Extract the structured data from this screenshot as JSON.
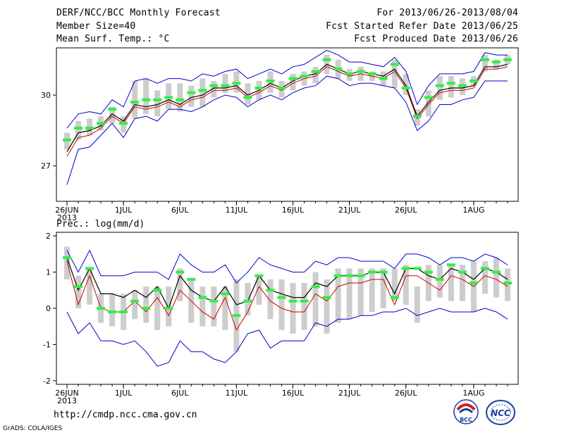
{
  "header": {
    "title": "DERF/NCC/BCC Monthly Forecast",
    "member_size": "Member Size=40",
    "variable1": "Mean Surf. Temp.: °C",
    "forecast_period": "For 2013/06/26-2013/08/04",
    "started_refer": "Fcst Started Refer Date 2013/06/25",
    "produced": "Fcst Produced Date 2013/06/26"
  },
  "footer": {
    "url": "http://cmdp.ncc.cma.gov.cn",
    "grads": "GrADS: COLA/IGES",
    "logo1_text": "BCC",
    "logo2_text": "NCC"
  },
  "colors": {
    "box": "#cdcdcd",
    "median": "#33ee44",
    "mean": "#000000",
    "obs": "#cc0000",
    "envelope": "#0000cc"
  },
  "chart_data": [
    {
      "type": "line",
      "title": "Mean Surf. Temp.: °C",
      "xlabel": "",
      "ylabel": "",
      "ylim": [
        25.5,
        32
      ],
      "y_ticks": [
        27,
        30
      ],
      "x_tick_labels": [
        "26JUN",
        "1JUL",
        "6JUL",
        "11JUL",
        "16JUL",
        "21JUL",
        "26JUL",
        "1AUG"
      ],
      "x_tick_days": [
        1,
        6,
        11,
        16,
        21,
        26,
        31,
        37
      ],
      "year_label": "2013",
      "days": [
        1,
        2,
        3,
        4,
        5,
        6,
        7,
        8,
        9,
        10,
        11,
        12,
        13,
        14,
        15,
        16,
        17,
        18,
        19,
        20,
        21,
        22,
        23,
        24,
        25,
        26,
        27,
        28,
        29,
        30,
        31,
        32,
        33,
        34,
        35,
        36,
        37,
        38,
        39,
        40
      ],
      "series": [
        {
          "name": "ensemble_box_top",
          "values": [
            28.4,
            28.9,
            29.0,
            29.1,
            29.5,
            29.1,
            30.6,
            30.7,
            30.2,
            30.5,
            30.5,
            30.4,
            30.7,
            30.6,
            30.9,
            31.0,
            30.5,
            30.6,
            31.0,
            30.6,
            30.9,
            31.0,
            31.2,
            31.7,
            31.5,
            31.1,
            31.2,
            31.0,
            31.0,
            31.5,
            30.9,
            29.4,
            30.2,
            30.8,
            30.8,
            30.7,
            30.8,
            31.7,
            31.5,
            31.7
          ]
        },
        {
          "name": "ensemble_box_bottom",
          "values": [
            27.7,
            28.1,
            28.3,
            28.5,
            28.8,
            28.4,
            29.0,
            29.2,
            29.1,
            29.4,
            29.3,
            29.5,
            29.5,
            29.9,
            30.1,
            30.1,
            29.6,
            29.8,
            30.1,
            29.9,
            30.2,
            30.4,
            30.5,
            30.9,
            30.7,
            30.6,
            30.6,
            30.6,
            30.4,
            30.3,
            30.0,
            28.7,
            29.1,
            29.8,
            29.9,
            30.0,
            30.4,
            31.0,
            31.1,
            31.3
          ]
        },
        {
          "name": "median",
          "values": [
            28.1,
            28.6,
            28.6,
            28.8,
            29.4,
            28.8,
            29.7,
            29.8,
            29.8,
            29.9,
            29.8,
            30.1,
            30.2,
            30.4,
            30.4,
            30.5,
            29.9,
            30.3,
            30.6,
            30.3,
            30.7,
            30.8,
            31.0,
            31.5,
            31.1,
            30.9,
            31.0,
            30.9,
            30.7,
            31.3,
            30.3,
            29.1,
            29.9,
            30.4,
            30.5,
            30.4,
            30.6,
            31.5,
            31.4,
            31.5
          ]
        },
        {
          "name": "ensemble_mean",
          "values": [
            27.6,
            28.4,
            28.5,
            28.7,
            29.2,
            28.9,
            29.6,
            29.5,
            29.6,
            29.8,
            29.6,
            29.9,
            30.0,
            30.3,
            30.3,
            30.4,
            30.0,
            30.2,
            30.5,
            30.3,
            30.6,
            30.8,
            30.9,
            31.3,
            31.1,
            30.9,
            31.0,
            30.9,
            30.8,
            31.1,
            30.4,
            29.1,
            29.7,
            30.2,
            30.3,
            30.3,
            30.4,
            31.2,
            31.2,
            31.3
          ]
        },
        {
          "name": "observed",
          "values": [
            27.4,
            28.2,
            28.3,
            28.6,
            29.1,
            28.8,
            29.5,
            29.4,
            29.5,
            29.7,
            29.5,
            29.8,
            29.9,
            30.2,
            30.2,
            30.3,
            29.9,
            30.1,
            30.4,
            30.2,
            30.5,
            30.7,
            30.8,
            31.2,
            31.0,
            30.8,
            30.9,
            30.8,
            30.7,
            31.0,
            30.3,
            29.0,
            29.6,
            30.1,
            30.2,
            30.2,
            30.3,
            31.1,
            31.1,
            31.2
          ]
        },
        {
          "name": "envelope_max",
          "values": [
            28.6,
            29.2,
            29.3,
            29.2,
            29.8,
            29.5,
            30.6,
            30.7,
            30.5,
            30.7,
            30.7,
            30.6,
            30.9,
            30.8,
            31.0,
            31.1,
            30.7,
            30.9,
            31.1,
            30.9,
            31.2,
            31.3,
            31.6,
            31.9,
            31.7,
            31.4,
            31.4,
            31.3,
            31.2,
            31.6,
            31.0,
            29.6,
            30.4,
            30.9,
            30.9,
            30.9,
            31.0,
            31.8,
            31.7,
            31.7
          ]
        },
        {
          "name": "envelope_min",
          "values": [
            26.2,
            27.7,
            27.8,
            28.3,
            28.8,
            28.2,
            29.0,
            29.1,
            28.9,
            29.4,
            29.4,
            29.3,
            29.5,
            29.8,
            30.0,
            29.9,
            29.5,
            29.8,
            30.0,
            29.8,
            30.1,
            30.3,
            30.4,
            30.8,
            30.7,
            30.4,
            30.5,
            30.5,
            30.4,
            30.3,
            29.7,
            28.5,
            28.9,
            29.6,
            29.6,
            29.8,
            29.9,
            30.6,
            30.6,
            30.6
          ]
        }
      ]
    },
    {
      "type": "line",
      "title": "Prec.: log(mm/d)",
      "xlabel": "",
      "ylabel": "",
      "ylim": [
        -2.1,
        2.1
      ],
      "y_ticks": [
        -2,
        -1,
        0,
        1,
        2
      ],
      "x_tick_labels": [
        "26JUN",
        "1JUL",
        "6JUL",
        "11JUL",
        "16JUL",
        "21JUL",
        "26JUL",
        "1AUG"
      ],
      "x_tick_days": [
        1,
        6,
        11,
        16,
        21,
        26,
        31,
        37
      ],
      "year_label": "2013",
      "days": [
        1,
        2,
        3,
        4,
        5,
        6,
        7,
        8,
        9,
        10,
        11,
        12,
        13,
        14,
        15,
        16,
        17,
        18,
        19,
        20,
        21,
        22,
        23,
        24,
        25,
        26,
        27,
        28,
        29,
        30,
        31,
        32,
        33,
        34,
        35,
        36,
        37,
        38,
        39,
        40
      ],
      "series": [
        {
          "name": "ensemble_box_top",
          "values": [
            1.7,
            0.9,
            1.1,
            0.4,
            0.4,
            0.4,
            0.5,
            0.6,
            0.6,
            0.6,
            1.1,
            0.8,
            0.6,
            0.6,
            0.6,
            0.8,
            0.7,
            0.9,
            0.8,
            0.8,
            0.7,
            0.7,
            1.0,
            0.8,
            1.1,
            1.1,
            1.1,
            1.1,
            1.1,
            1.1,
            1.2,
            0.6,
            1.2,
            1.2,
            1.2,
            1.2,
            1.3,
            1.3,
            1.4,
            1.1
          ]
        },
        {
          "name": "ensemble_box_bottom",
          "values": [
            0.8,
            0.0,
            0.1,
            -0.4,
            -0.5,
            -0.6,
            -0.3,
            -0.4,
            -0.6,
            -0.5,
            0.2,
            -0.4,
            -0.5,
            -0.5,
            -0.6,
            -1.2,
            -0.2,
            0.1,
            -0.3,
            -0.6,
            -0.7,
            -0.6,
            -0.5,
            -0.7,
            -0.4,
            -0.3,
            -0.2,
            -0.1,
            0.0,
            0.2,
            0.1,
            -0.4,
            0.2,
            0.3,
            0.2,
            0.2,
            -0.1,
            0.4,
            0.3,
            0.2
          ]
        },
        {
          "name": "median",
          "values": [
            1.4,
            0.6,
            1.1,
            0.0,
            -0.1,
            -0.1,
            0.2,
            0.0,
            0.5,
            0.0,
            1.0,
            0.8,
            0.3,
            0.2,
            0.4,
            -0.2,
            0.2,
            0.9,
            0.5,
            0.3,
            0.2,
            0.2,
            0.6,
            0.3,
            0.9,
            0.9,
            0.9,
            1.0,
            1.0,
            0.3,
            1.1,
            1.1,
            1.0,
            0.8,
            1.2,
            1.0,
            0.7,
            1.1,
            1.0,
            0.7
          ]
        },
        {
          "name": "ensemble_mean",
          "values": [
            1.4,
            0.5,
            1.1,
            0.4,
            0.4,
            0.3,
            0.5,
            0.3,
            0.6,
            0.0,
            0.9,
            0.5,
            0.3,
            0.2,
            0.6,
            0.1,
            0.2,
            0.9,
            0.5,
            0.4,
            0.3,
            0.3,
            0.7,
            0.6,
            0.9,
            0.9,
            0.9,
            1.0,
            1.0,
            0.4,
            1.1,
            1.1,
            0.9,
            0.8,
            1.1,
            1.0,
            0.8,
            1.1,
            1.0,
            0.8
          ]
        },
        {
          "name": "observed",
          "values": [
            1.3,
            0.1,
            0.9,
            0.0,
            -0.1,
            -0.1,
            0.2,
            -0.1,
            0.3,
            -0.2,
            0.5,
            0.2,
            -0.1,
            -0.3,
            0.3,
            -0.6,
            -0.1,
            0.6,
            0.2,
            0.0,
            -0.1,
            -0.1,
            0.4,
            0.2,
            0.6,
            0.7,
            0.7,
            0.8,
            0.8,
            0.1,
            0.9,
            0.9,
            0.7,
            0.5,
            0.9,
            0.8,
            0.6,
            0.9,
            0.8,
            0.6
          ]
        },
        {
          "name": "envelope_max",
          "values": [
            1.6,
            1.0,
            1.6,
            0.9,
            0.9,
            0.9,
            1.0,
            1.0,
            1.0,
            0.8,
            1.5,
            1.2,
            1.0,
            1.0,
            1.2,
            0.7,
            1.0,
            1.4,
            1.2,
            1.1,
            1.0,
            1.0,
            1.3,
            1.2,
            1.4,
            1.4,
            1.3,
            1.3,
            1.3,
            1.1,
            1.5,
            1.5,
            1.4,
            1.2,
            1.4,
            1.4,
            1.3,
            1.5,
            1.4,
            1.2
          ]
        },
        {
          "name": "envelope_min",
          "values": [
            -0.1,
            -0.7,
            -0.4,
            -0.9,
            -0.9,
            -1.0,
            -0.9,
            -1.2,
            -1.6,
            -1.5,
            -0.9,
            -1.2,
            -1.2,
            -1.4,
            -1.5,
            -1.2,
            -0.7,
            -0.6,
            -1.1,
            -0.9,
            -0.9,
            -0.9,
            -0.4,
            -0.5,
            -0.3,
            -0.3,
            -0.2,
            -0.2,
            -0.1,
            -0.1,
            0.0,
            -0.2,
            -0.1,
            0.0,
            -0.1,
            -0.1,
            -0.1,
            0.0,
            -0.1,
            -0.3
          ]
        }
      ]
    }
  ]
}
